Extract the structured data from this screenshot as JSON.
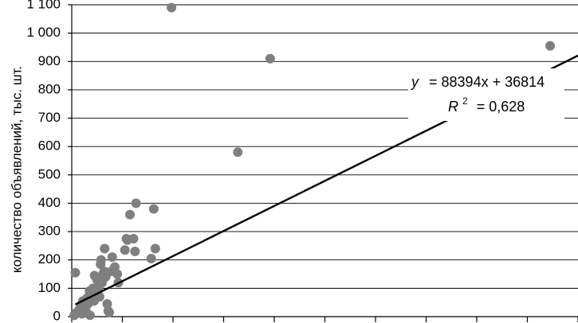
{
  "chart_data": {
    "type": "scatter",
    "ylabel": "количество объявлений, тыс. шт.",
    "ylim": [
      0,
      1100
    ],
    "yticks": [
      0,
      100,
      200,
      300,
      400,
      500,
      600,
      700,
      800,
      900,
      1000,
      1100
    ],
    "ytick_labels": [
      "0",
      "100",
      "200",
      "300",
      "400",
      "500",
      "600",
      "700",
      "800",
      "900",
      "1 000",
      "1 100"
    ],
    "xlim": [
      0,
      10
    ],
    "xticks": [
      0,
      1,
      2,
      3,
      4,
      5,
      6,
      7,
      8,
      9,
      10
    ],
    "grid_y": true,
    "marker_color": "#7f7f7f",
    "trendline": {
      "slope": 88394,
      "intercept": 36814,
      "scale": 0.001,
      "color": "#000000"
    },
    "equation": {
      "y": "y",
      "equals": "=",
      "eq_rest": "= 88394x + 36814",
      "r2_lhs": "R",
      "r2_sup": "2",
      "r2_rhs": "= 0,628"
    },
    "points": [
      [
        0.07,
        155
      ],
      [
        0.05,
        5
      ],
      [
        0.1,
        15
      ],
      [
        0.15,
        25
      ],
      [
        0.18,
        40
      ],
      [
        0.2,
        10
      ],
      [
        0.22,
        55
      ],
      [
        0.25,
        35
      ],
      [
        0.28,
        20
      ],
      [
        0.3,
        65
      ],
      [
        0.32,
        45
      ],
      [
        0.35,
        90
      ],
      [
        0.36,
        5
      ],
      [
        0.38,
        75
      ],
      [
        0.4,
        60
      ],
      [
        0.42,
        100
      ],
      [
        0.44,
        55
      ],
      [
        0.45,
        145
      ],
      [
        0.47,
        80
      ],
      [
        0.5,
        130
      ],
      [
        0.52,
        95
      ],
      [
        0.54,
        110
      ],
      [
        0.55,
        70
      ],
      [
        0.57,
        185
      ],
      [
        0.58,
        200
      ],
      [
        0.6,
        120
      ],
      [
        0.62,
        150
      ],
      [
        0.64,
        160
      ],
      [
        0.65,
        240
      ],
      [
        0.67,
        140
      ],
      [
        0.7,
        45
      ],
      [
        0.72,
        20
      ],
      [
        0.74,
        15
      ],
      [
        0.78,
        160
      ],
      [
        0.8,
        210
      ],
      [
        0.85,
        175
      ],
      [
        0.9,
        150
      ],
      [
        0.92,
        120
      ],
      [
        1.05,
        235
      ],
      [
        1.08,
        275
      ],
      [
        1.1,
        270
      ],
      [
        1.15,
        360
      ],
      [
        1.22,
        275
      ],
      [
        1.25,
        230
      ],
      [
        1.27,
        400
      ],
      [
        1.57,
        205
      ],
      [
        1.62,
        380
      ],
      [
        1.65,
        240
      ],
      [
        1.97,
        1090
      ],
      [
        3.28,
        580
      ],
      [
        3.92,
        910
      ],
      [
        9.45,
        955
      ]
    ]
  }
}
